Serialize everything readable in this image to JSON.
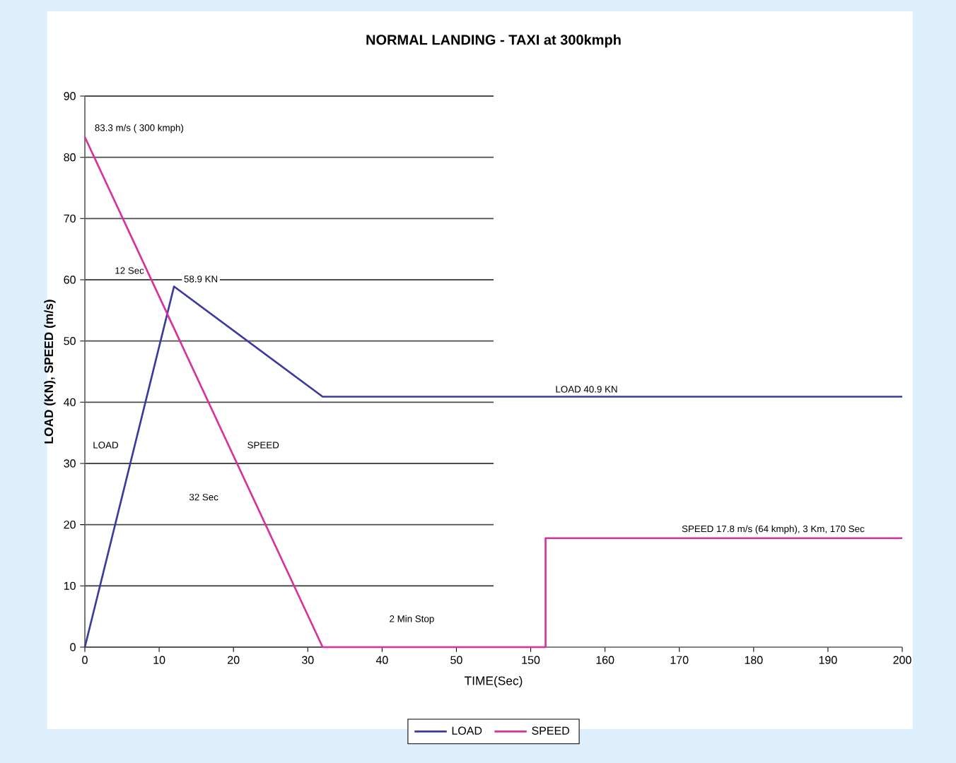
{
  "chart_data": [
    {
      "type": "line",
      "title": "NORMAL LANDING - TAXI at 300kmph",
      "xlabel": "TIME(Sec)",
      "ylabel": "LOAD (KN), SPEED (m/s)",
      "xlim": [
        0,
        55
      ],
      "xticks": [
        0,
        10,
        20,
        30,
        40,
        50
      ],
      "ylim": [
        0,
        90
      ],
      "yticks": [
        0,
        10,
        20,
        30,
        40,
        50,
        60,
        70,
        80,
        90
      ],
      "grid": "y",
      "legend": "bottom",
      "series": [
        {
          "name": "LOAD",
          "color": "#3b3b9e",
          "x": [
            0,
            12,
            32,
            55
          ],
          "values": [
            0,
            58.9,
            40.9,
            40.9
          ]
        },
        {
          "name": "SPEED",
          "color": "#d6339b",
          "x": [
            0,
            32,
            55
          ],
          "values": [
            83.3,
            0,
            0
          ]
        }
      ],
      "annotations": [
        {
          "text": "83.3 m/s ( 300 kmph)",
          "x": 0,
          "y": 83.3
        },
        {
          "text": "58.9 KN",
          "x": 12,
          "y": 58.9
        },
        "12 Sec",
        "LOAD",
        "SPEED",
        "32 Sec",
        "2 Min Stop"
      ]
    },
    {
      "type": "line",
      "xlim": [
        145,
        200
      ],
      "xticks": [
        150,
        160,
        170,
        180,
        190,
        200
      ],
      "ylim": [
        0,
        90
      ],
      "yticks": [
        0,
        10,
        20,
        30,
        40,
        50,
        60,
        70,
        80,
        90
      ],
      "grid": "y",
      "tick_labels": "x",
      "series": [
        {
          "color": "#3b3b9e",
          "x": [
            145,
            200
          ],
          "values": [
            40.9,
            40.9
          ]
        },
        {
          "color": "#d6339b",
          "x": [
            145,
            152,
            152,
            200
          ],
          "values": [
            0,
            0,
            17.8,
            17.8
          ]
        }
      ],
      "annotations": [
        {
          "text": "LOAD  40.9 KN",
          "x": 152,
          "y": 40.9
        },
        {
          "text": "SPEED 17.8 m/s (64 kmph), 3 Km, 170 Sec",
          "x": 169,
          "y": 17.8
        }
      ]
    }
  ]
}
